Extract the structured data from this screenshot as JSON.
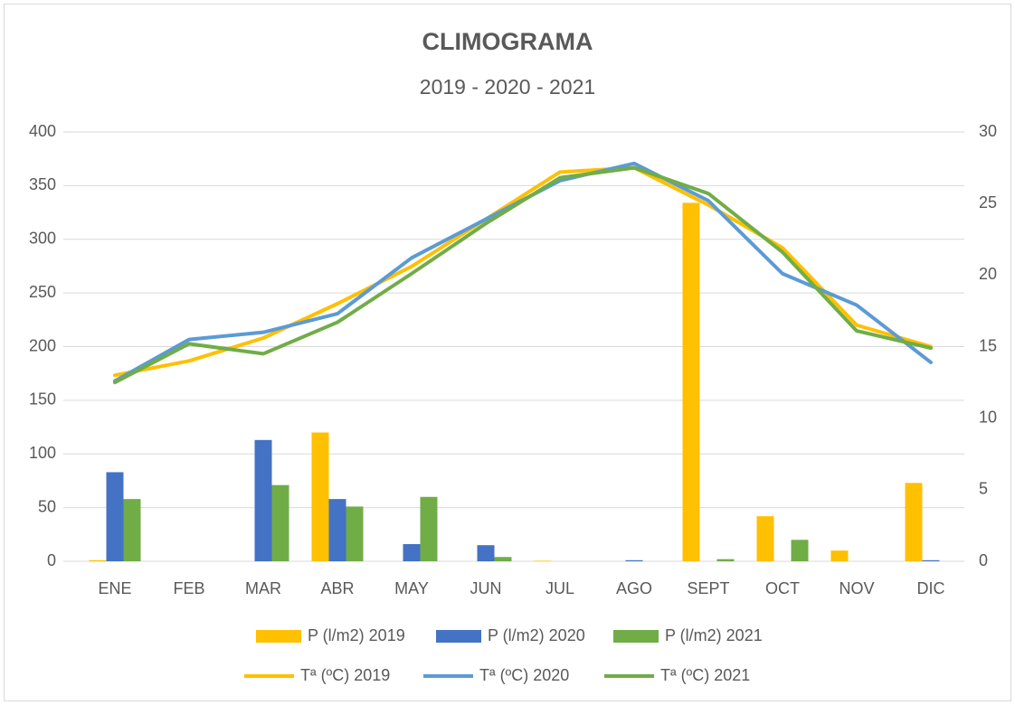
{
  "chart_data": {
    "type": "bar",
    "title": "CLIMOGRAMA",
    "subtitle": "2019 - 2020 - 2021",
    "categories": [
      "ENE",
      "FEB",
      "MAR",
      "ABR",
      "MAY",
      "JUN",
      "JUL",
      "AGO",
      "SEPT",
      "OCT",
      "NOV",
      "DIC"
    ],
    "series": [
      {
        "name": "P (l/m2) 2019",
        "type": "bar",
        "color": "#FFC000",
        "values": [
          1,
          0,
          0,
          120,
          0,
          0,
          0.5,
          0,
          334,
          42,
          10,
          73
        ]
      },
      {
        "name": "P (l/m2) 2020",
        "type": "bar",
        "color": "#4472C4",
        "values": [
          83,
          0,
          113,
          58,
          16,
          15,
          0,
          1,
          0,
          0,
          0,
          1
        ]
      },
      {
        "name": "P (l/m2) 2021",
        "type": "bar",
        "color": "#70AD47",
        "values": [
          58,
          0,
          71,
          51,
          60,
          4,
          0,
          0,
          2,
          20,
          0,
          0
        ]
      },
      {
        "name": "Tª (ºC) 2019",
        "type": "line",
        "axis": "y2",
        "color": "#FFC000",
        "values": [
          13.0,
          14.0,
          15.6,
          18.0,
          20.6,
          23.9,
          27.2,
          27.5,
          24.9,
          21.9,
          16.5,
          15.0
        ]
      },
      {
        "name": "Tª (ºC) 2020",
        "type": "line",
        "axis": "y2",
        "color": "#5B9BD5",
        "values": [
          12.6,
          15.5,
          16.0,
          17.3,
          21.2,
          23.9,
          26.6,
          27.8,
          25.2,
          20.1,
          17.9,
          13.9
        ]
      },
      {
        "name": "Tª (ºC) 2021",
        "type": "line",
        "axis": "y2",
        "color": "#70AD47",
        "values": [
          12.5,
          15.2,
          14.5,
          16.7,
          20.1,
          23.6,
          26.8,
          27.5,
          25.7,
          21.6,
          16.1,
          14.9
        ]
      }
    ],
    "ylim": [
      0,
      400
    ],
    "yticks": [
      0,
      50,
      100,
      150,
      200,
      250,
      300,
      350,
      400
    ],
    "y2lim": [
      0,
      30
    ],
    "y2ticks": [
      0,
      5,
      10,
      15,
      20,
      25,
      30
    ],
    "grid": true
  }
}
